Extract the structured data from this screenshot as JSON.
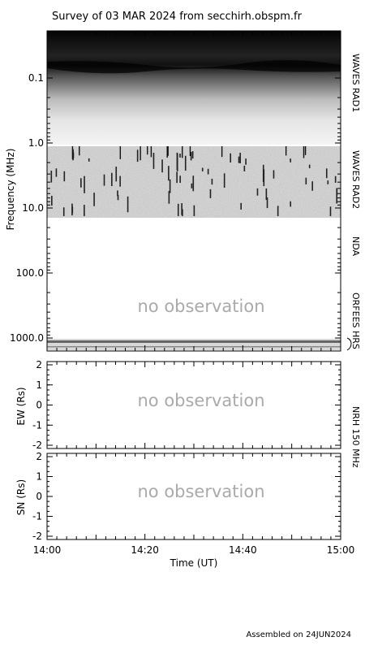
{
  "chart_data": [
    {
      "type": "heatmap",
      "panel": "spectrogram",
      "title": "Survey of 03 MAR 2024 from secchirh.obspm.fr",
      "ylabel": "Frequency (MHz)",
      "yscale": "log",
      "ylim": [
        0.03,
        2000
      ],
      "ytick_labels": [
        "0.1",
        "1.0",
        "10.0",
        "100.0",
        "1000.0"
      ],
      "yticks": [
        0.1,
        1,
        10,
        100,
        1000
      ],
      "instruments": [
        {
          "name": "WAVES RAD1",
          "range_mhz": [
            0.03,
            1.0
          ],
          "status": "observed"
        },
        {
          "name": "WAVES RAD2",
          "range_mhz": [
            1.0,
            14
          ],
          "status": "observed"
        },
        {
          "name": "NDA",
          "range_mhz": [
            14,
            100
          ],
          "status": "no observation"
        },
        {
          "name": "ORFEES",
          "range_mhz": [
            100,
            1000
          ],
          "status": "no observation"
        },
        {
          "name": "HRS",
          "range_mhz": [
            1000,
            1500
          ],
          "status": "observed"
        }
      ],
      "annotation": "no observation"
    },
    {
      "type": "scatter",
      "panel": "EW",
      "ylabel": "EW (Rs)",
      "ylim": [
        -2,
        2
      ],
      "ytick_labels": [
        "2",
        "1",
        "0",
        "-1",
        "-2"
      ],
      "instrument": "NRH 150 MHz",
      "annotation": "no observation"
    },
    {
      "type": "scatter",
      "panel": "SN",
      "ylabel": "SN (Rs)",
      "ylim": [
        -2,
        2
      ],
      "ytick_labels": [
        "2",
        "1",
        "0",
        "-1",
        "-2"
      ],
      "annotation": "no observation"
    }
  ],
  "xaxis": {
    "label": "Time (UT)",
    "tick_labels": [
      "14:00",
      "14:20",
      "14:40",
      "15:00"
    ]
  },
  "footer": "Assembled on 24JUN2024",
  "colors": {
    "axis": "#000000",
    "annotation": "#aaaaaa",
    "background": "#ffffff"
  }
}
